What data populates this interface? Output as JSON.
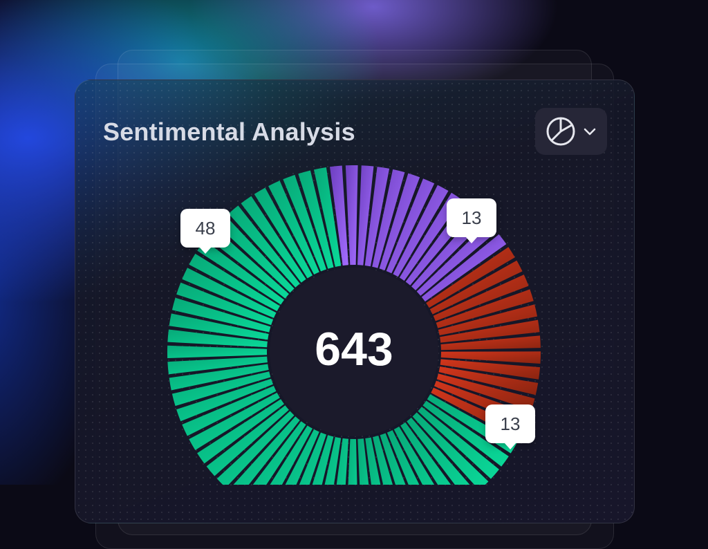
{
  "card": {
    "title": "Sentimental Analysis",
    "chart_type_button": {
      "icon": "pie-chart-icon",
      "dropdown_icon": "chevron-down-icon"
    }
  },
  "chart_data": {
    "type": "pie",
    "center_label": "643",
    "callouts": [
      "48",
      "13",
      "13"
    ],
    "series": [
      {
        "value": 48,
        "color": "#08c38a"
      },
      {
        "value": 13,
        "color": "#8b5cf6"
      },
      {
        "value": 13,
        "color": "#c0321a"
      }
    ]
  }
}
